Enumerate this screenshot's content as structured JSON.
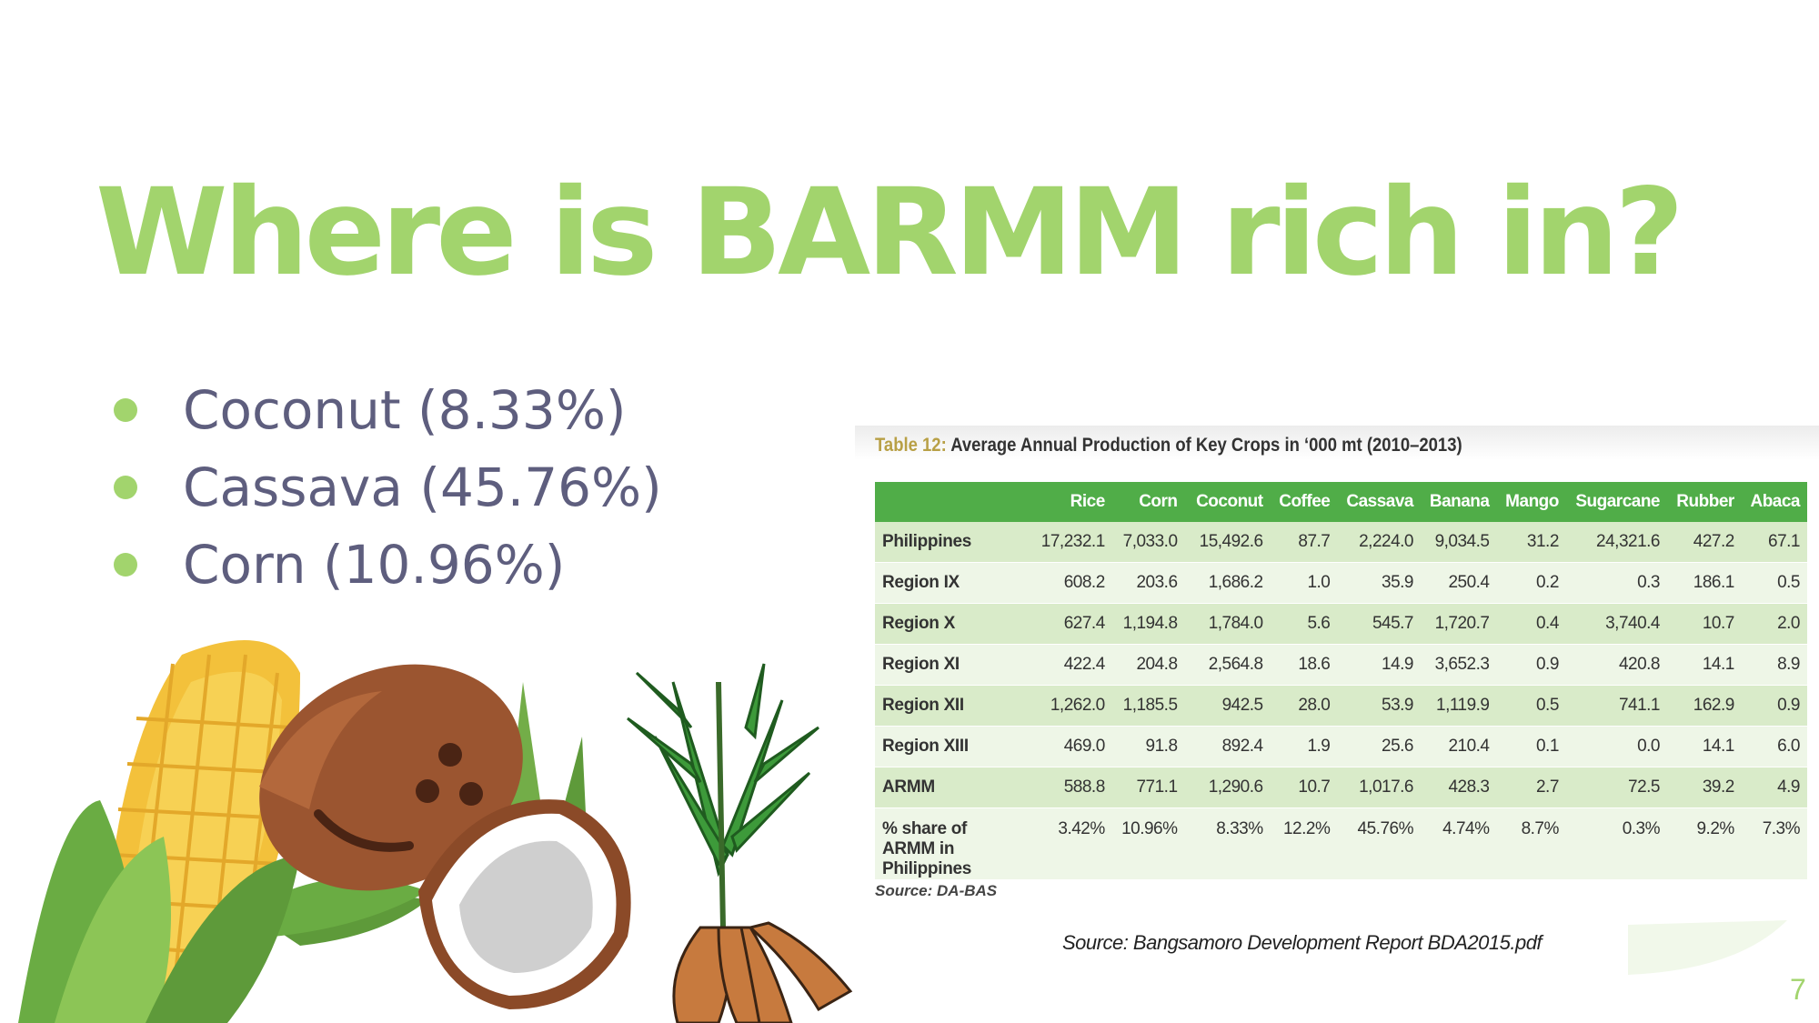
{
  "slide": {
    "title": "Where is BARMM rich in?",
    "bullets": [
      "Coconut (8.33%)",
      "Cassava (45.76%)",
      "Corn (10.96%)"
    ],
    "source": "Source:  Bangsamoro Development Report BDA2015.pdf",
    "page_number": "7",
    "accent_color": "#a2d46d",
    "text_color": "#5e5e7e"
  },
  "illustration": {
    "icons": [
      "corn-icon",
      "coconut-icon",
      "cassava-icon",
      "leaves-icon"
    ]
  },
  "table": {
    "caption_number": "Table 12:",
    "caption_text": "Average Annual Production of Key Crops in ‘000 mt (2010–2013)",
    "header_color": "#50ad48",
    "headers": [
      "",
      "Rice",
      "Corn",
      "Coconut",
      "Coffee",
      "Cassava",
      "Banana",
      "Mango",
      "Sugarcane",
      "Rubber",
      "Abaca"
    ],
    "rows": [
      [
        "Philippines",
        "17,232.1",
        "7,033.0",
        "15,492.6",
        "87.7",
        "2,224.0",
        "9,034.5",
        "31.2",
        "24,321.6",
        "427.2",
        "67.1"
      ],
      [
        "Region IX",
        "608.2",
        "203.6",
        "1,686.2",
        "1.0",
        "35.9",
        "250.4",
        "0.2",
        "0.3",
        "186.1",
        "0.5"
      ],
      [
        "Region X",
        "627.4",
        "1,194.8",
        "1,784.0",
        "5.6",
        "545.7",
        "1,720.7",
        "0.4",
        "3,740.4",
        "10.7",
        "2.0"
      ],
      [
        "Region XI",
        "422.4",
        "204.8",
        "2,564.8",
        "18.6",
        "14.9",
        "3,652.3",
        "0.9",
        "420.8",
        "14.1",
        "8.9"
      ],
      [
        "Region XII",
        "1,262.0",
        "1,185.5",
        "942.5",
        "28.0",
        "53.9",
        "1,119.9",
        "0.5",
        "741.1",
        "162.9",
        "0.9"
      ],
      [
        "Region XIII",
        "469.0",
        "91.8",
        "892.4",
        "1.9",
        "25.6",
        "210.4",
        "0.1",
        "0.0",
        "14.1",
        "6.0"
      ],
      [
        "ARMM",
        "588.8",
        "771.1",
        "1,290.6",
        "10.7",
        "1,017.6",
        "428.3",
        "2.7",
        "72.5",
        "39.2",
        "4.9"
      ],
      [
        "% share of ARMM in Philippines",
        "3.42%",
        "10.96%",
        "8.33%",
        "12.2%",
        "45.76%",
        "4.74%",
        "8.7%",
        "0.3%",
        "9.2%",
        "7.3%"
      ]
    ],
    "source": "Source: DA-BAS"
  }
}
